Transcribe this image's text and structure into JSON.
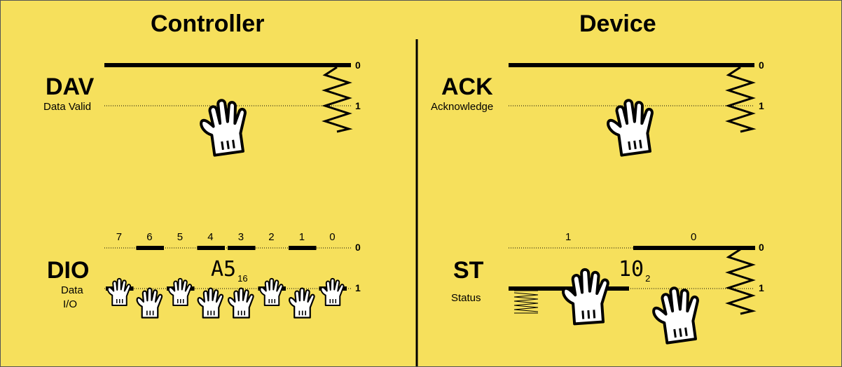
{
  "headings": {
    "controller": "Controller",
    "device": "Device"
  },
  "controller": {
    "dav": {
      "name": "DAV",
      "desc": "Data Valid",
      "level_0": "0",
      "level_1": "1"
    },
    "dio": {
      "name": "DIO",
      "desc_line1": "Data",
      "desc_line2": "I/O",
      "level_0": "0",
      "level_1": "1",
      "value": "A5",
      "base": "16",
      "bit_labels": [
        "7",
        "6",
        "5",
        "4",
        "3",
        "2",
        "1",
        "0"
      ],
      "bit_states": [
        1,
        0,
        1,
        0,
        0,
        1,
        0,
        1
      ]
    }
  },
  "device": {
    "ack": {
      "name": "ACK",
      "desc": "Acknowledge",
      "level_0": "0",
      "level_1": "1"
    },
    "st": {
      "name": "ST",
      "desc": "Status",
      "level_0": "0",
      "level_1": "1",
      "value": "10",
      "base": "2",
      "bit_labels": [
        "1",
        "0"
      ],
      "bit_states": [
        1,
        0
      ]
    }
  },
  "colors": {
    "background": "#f6e05c",
    "ink": "#000000",
    "glove": "#ffffff"
  },
  "icons": [
    "hand-icon",
    "spring-icon"
  ]
}
